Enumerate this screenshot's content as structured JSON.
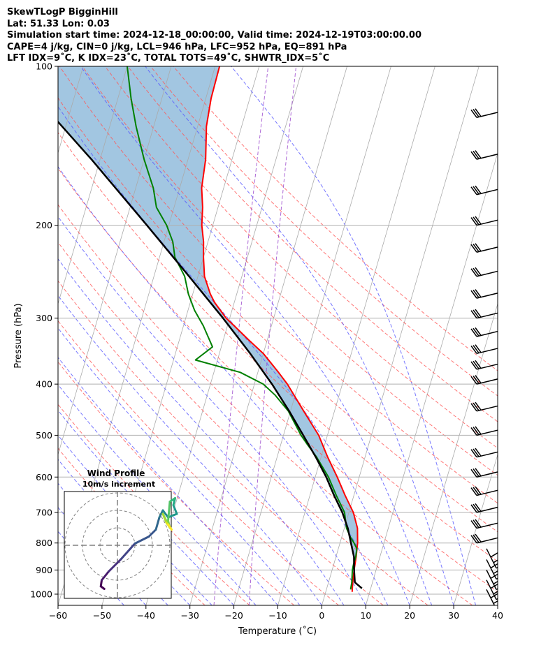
{
  "header": {
    "lines": [
      "SkewTLogP BigginHill",
      "Lat: 51.33   Lon: 0.03",
      "Simulation start time: 2024-12-18_00:00:00, Valid time: 2024-12-19T03:00:00.00",
      "CAPE=4 j/kg, CIN=0 j/kg, LCL=946 hPa, LFC=952 hPa, EQ=891 hPa",
      "LFT IDX=9˚C, K IDX=23˚C, TOTAL TOTS=49˚C, SHWTR_IDX=5˚C"
    ]
  },
  "chart_data": {
    "type": "skew-t log-p",
    "xlabel": "Temperature (˚C)",
    "ylabel": "Pressure (hPa)",
    "xlim": [
      -60,
      40
    ],
    "ylim": [
      1050,
      100
    ],
    "xticks": [
      -60,
      -50,
      -40,
      -30,
      -20,
      -10,
      0,
      10,
      20,
      30,
      40
    ],
    "xtick_labels": [
      "−60",
      "−50",
      "−40",
      "−30",
      "−20",
      "−10",
      "0",
      "10",
      "20",
      "30",
      "40"
    ],
    "yticks": [
      1000,
      900,
      800,
      700,
      600,
      500,
      400,
      300,
      200,
      100
    ],
    "ytick_labels": [
      "1000",
      "900",
      "800",
      "700",
      "600",
      "500",
      "400",
      "300",
      "200",
      "100"
    ],
    "skew": 35,
    "series": [
      {
        "name": "Temperature",
        "color": "#ff0000",
        "points": [
          [
            990,
            6.0
          ],
          [
            950,
            5.5
          ],
          [
            900,
            5.0
          ],
          [
            850,
            4.6
          ],
          [
            800,
            4.0
          ],
          [
            750,
            3.0
          ],
          [
            700,
            1.0
          ],
          [
            650,
            -2.0
          ],
          [
            600,
            -5.0
          ],
          [
            550,
            -8.5
          ],
          [
            500,
            -12.0
          ],
          [
            450,
            -17.0
          ],
          [
            400,
            -22.5
          ],
          [
            380,
            -25.3
          ],
          [
            350,
            -30.0
          ],
          [
            330,
            -34.2
          ],
          [
            310,
            -38.5
          ],
          [
            300,
            -40.8
          ],
          [
            280,
            -44.5
          ],
          [
            270,
            -46.0
          ],
          [
            250,
            -48.5
          ],
          [
            230,
            -50.0
          ],
          [
            215,
            -51.0
          ],
          [
            200,
            -52.5
          ],
          [
            185,
            -53.5
          ],
          [
            170,
            -55.0
          ],
          [
            150,
            -56.0
          ],
          [
            130,
            -58.0
          ],
          [
            115,
            -58.8
          ],
          [
            100,
            -59.0
          ]
        ]
      },
      {
        "name": "Dewpoint",
        "color": "#008000",
        "points": [
          [
            980,
            5.5
          ],
          [
            950,
            5.3
          ],
          [
            900,
            4.6
          ],
          [
            880,
            4.5
          ],
          [
            850,
            4.5
          ],
          [
            820,
            4.2
          ],
          [
            800,
            3.2
          ],
          [
            780,
            2.0
          ],
          [
            750,
            0.5
          ],
          [
            700,
            -1.0
          ],
          [
            650,
            -4.0
          ],
          [
            600,
            -7.0
          ],
          [
            550,
            -11.0
          ],
          [
            520,
            -14.0
          ],
          [
            500,
            -16.0
          ],
          [
            450,
            -20.5
          ],
          [
            420,
            -24.5
          ],
          [
            400,
            -28.0
          ],
          [
            380,
            -34.0
          ],
          [
            360,
            -45.0
          ],
          [
            340,
            -42.0
          ],
          [
            310,
            -45.5
          ],
          [
            290,
            -48.5
          ],
          [
            270,
            -51.0
          ],
          [
            250,
            -53.0
          ],
          [
            230,
            -56.5
          ],
          [
            215,
            -58.0
          ],
          [
            200,
            -60.5
          ],
          [
            185,
            -64.0
          ],
          [
            170,
            -66.0
          ],
          [
            150,
            -70.0
          ],
          [
            130,
            -74.0
          ],
          [
            115,
            -77.0
          ],
          [
            100,
            -80.0
          ]
        ]
      },
      {
        "name": "Parcel profile",
        "color": "#000000",
        "points": [
          [
            975,
            8.0
          ],
          [
            950,
            6.0
          ],
          [
            900,
            5.0
          ],
          [
            850,
            4.1
          ],
          [
            800,
            2.5
          ],
          [
            750,
            0.8
          ],
          [
            700,
            -1.5
          ],
          [
            650,
            -4.5
          ],
          [
            600,
            -7.5
          ],
          [
            550,
            -11.2
          ],
          [
            500,
            -15.5
          ],
          [
            450,
            -20.3
          ],
          [
            400,
            -26.0
          ],
          [
            350,
            -33.0
          ],
          [
            300,
            -41.5
          ],
          [
            250,
            -52.0
          ],
          [
            200,
            -65.0
          ],
          [
            150,
            -82.0
          ],
          [
            100,
            -107.0
          ]
        ]
      }
    ],
    "shaded_area": {
      "name": "CAPE/CIN region",
      "color": "#7aaed4"
    },
    "reference_lines": {
      "isotherms": {
        "color": "#aaaaaa",
        "values": [
          -140,
          -130,
          -120,
          -110,
          -100,
          -90,
          -80,
          -70,
          -60,
          -50,
          -40,
          -30,
          -20,
          -10,
          0,
          10,
          20,
          30,
          40
        ]
      },
      "dry_adiabats": {
        "color": "#ff5555",
        "theta_c": [
          -30,
          -20,
          -10,
          0,
          10,
          20,
          30,
          40,
          50,
          60,
          70,
          80,
          90,
          100,
          110,
          120
        ]
      },
      "moist_adiabats": {
        "color": "#5555ff",
        "start_c": [
          -45,
          -40,
          -35,
          -30,
          -25,
          -20,
          -15,
          -10,
          -5,
          0,
          5,
          10,
          15,
          20,
          25,
          30,
          35
        ]
      },
      "mixing_ratio": {
        "color": "#9944cc",
        "values_gkg": [
          0.0005,
          0.001
        ]
      }
    },
    "wind_barbs": {
      "color": "#000000",
      "upper": [
        [
          100,
          "NNW",
          30
        ],
        [
          125,
          "NNW",
          30
        ],
        [
          150,
          "NNW",
          30
        ],
        [
          175,
          "NNW",
          30
        ],
        [
          200,
          "NNW",
          30
        ],
        [
          225,
          "NNW",
          30
        ],
        [
          250,
          "NNW",
          30
        ],
        [
          275,
          "NNW",
          30
        ],
        [
          300,
          "NNW",
          30
        ],
        [
          325,
          "NNW",
          30
        ],
        [
          350,
          "NNW",
          30
        ],
        [
          375,
          "NNW",
          30
        ],
        [
          400,
          "NNW",
          30
        ],
        [
          450,
          "NNW",
          30
        ],
        [
          500,
          "NNW",
          30
        ],
        [
          550,
          "NNW",
          30
        ],
        [
          600,
          "NNW",
          30
        ],
        [
          650,
          "NNW",
          30
        ],
        [
          700,
          "NNW",
          30
        ],
        [
          750,
          "NNW",
          30
        ],
        [
          800,
          "N",
          30
        ]
      ],
      "lower": [
        [
          820,
          "S",
          40
        ],
        [
          860,
          "S",
          40
        ],
        [
          900,
          "S",
          40
        ],
        [
          940,
          "S",
          40
        ],
        [
          980,
          "S",
          40
        ]
      ]
    },
    "hodograph": {
      "title": "Wind Profile",
      "subtitle": "10m/s increment",
      "rings": 3,
      "points": [
        [
          -0.75,
          -2.5
        ],
        [
          -0.95,
          -2.35
        ],
        [
          -0.9,
          -2.0
        ],
        [
          -0.5,
          -1.5
        ],
        [
          0.2,
          -0.8
        ],
        [
          1.0,
          0.1
        ],
        [
          1.8,
          0.5
        ],
        [
          2.2,
          0.9
        ],
        [
          2.4,
          1.6
        ],
        [
          2.6,
          2.0
        ],
        [
          2.9,
          1.6
        ],
        [
          3.4,
          1.8
        ],
        [
          3.2,
          2.3
        ],
        [
          3.3,
          2.7
        ],
        [
          3.0,
          2.5
        ],
        [
          2.9,
          1.4
        ],
        [
          3.0,
          1.0
        ],
        [
          2.6,
          1.8
        ],
        [
          2.8,
          1.3
        ],
        [
          3.1,
          0.9
        ],
        [
          2.9,
          1.2
        ]
      ]
    }
  }
}
